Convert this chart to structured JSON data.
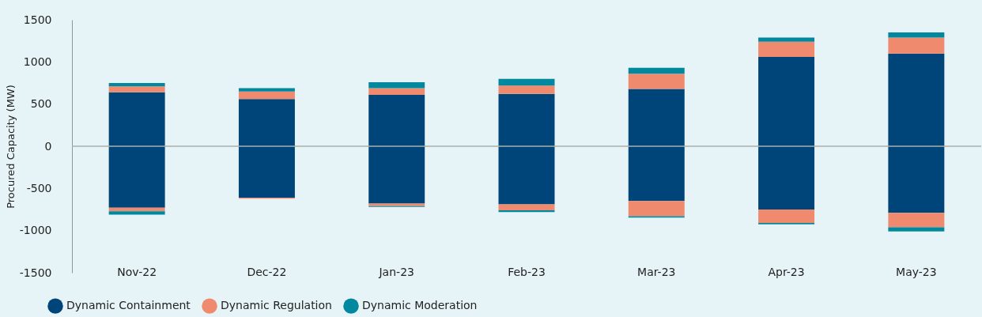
{
  "chart_data": {
    "type": "bar",
    "stacked": true,
    "ylabel": "Procured Capacity (MW)",
    "categories": [
      "Nov-22",
      "Dec-22",
      "Jan-23",
      "Feb-23",
      "Mar-23",
      "Apr-23",
      "May-23"
    ],
    "series": [
      {
        "name": "Dynamic Containment",
        "color": "#00457a",
        "values": [
          640,
          560,
          610,
          620,
          680,
          1060,
          1100
        ]
      },
      {
        "name": "Dynamic Regulation",
        "color": "#f08a6e",
        "values": [
          70,
          90,
          80,
          100,
          180,
          180,
          190
        ]
      },
      {
        "name": "Dynamic Moderation",
        "color": "#00899e",
        "values": [
          40,
          40,
          70,
          80,
          70,
          50,
          60
        ]
      },
      {
        "color": "#00457a",
        "values": [
          -730,
          -610,
          -680,
          -690,
          -650,
          -750,
          -790
        ]
      },
      {
        "color": "#f08a6e",
        "values": [
          -40,
          -10,
          -30,
          -70,
          -180,
          -160,
          -170
        ]
      },
      {
        "color": "#00899e",
        "values": [
          -40,
          null,
          -10,
          -20,
          -15,
          -15,
          -50
        ]
      }
    ],
    "ylim": [
      -1500,
      1500
    ],
    "yticks": [
      -1500,
      -1000,
      -500,
      0,
      500,
      1000,
      1500
    ],
    "grid": false,
    "legend": "bottom",
    "ref_lines": [
      {
        "axis": "y",
        "value": 0,
        "color": "#a9b1ad"
      }
    ]
  }
}
